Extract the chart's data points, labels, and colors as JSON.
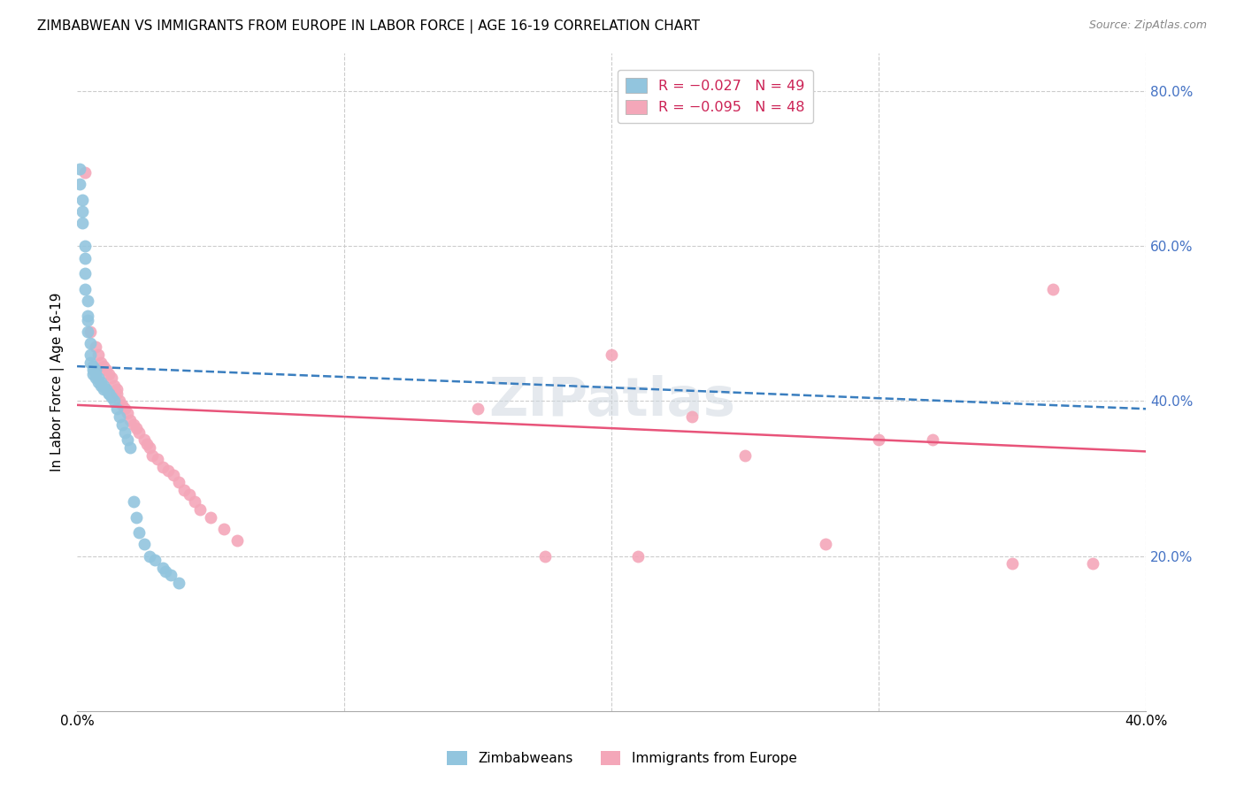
{
  "title": "ZIMBABWEAN VS IMMIGRANTS FROM EUROPE IN LABOR FORCE | AGE 16-19 CORRELATION CHART",
  "source": "Source: ZipAtlas.com",
  "ylabel": "In Labor Force | Age 16-19",
  "xlim": [
    0.0,
    0.4
  ],
  "ylim": [
    0.0,
    0.85
  ],
  "blue_color": "#92c5de",
  "pink_color": "#f4a7b9",
  "blue_line_color": "#3a7ebf",
  "pink_line_color": "#e8547a",
  "watermark": "ZIPatlas",
  "zim_x": [
    0.001,
    0.001,
    0.002,
    0.002,
    0.002,
    0.003,
    0.003,
    0.003,
    0.003,
    0.004,
    0.004,
    0.004,
    0.004,
    0.005,
    0.005,
    0.005,
    0.006,
    0.006,
    0.006,
    0.007,
    0.007,
    0.007,
    0.008,
    0.008,
    0.009,
    0.009,
    0.01,
    0.01,
    0.011,
    0.012,
    0.012,
    0.013,
    0.014,
    0.015,
    0.016,
    0.017,
    0.018,
    0.019,
    0.02,
    0.021,
    0.022,
    0.023,
    0.025,
    0.027,
    0.029,
    0.032,
    0.033,
    0.035,
    0.038
  ],
  "zim_y": [
    0.7,
    0.68,
    0.66,
    0.645,
    0.63,
    0.6,
    0.585,
    0.565,
    0.545,
    0.53,
    0.51,
    0.505,
    0.49,
    0.475,
    0.46,
    0.45,
    0.445,
    0.44,
    0.435,
    0.44,
    0.435,
    0.43,
    0.43,
    0.425,
    0.425,
    0.42,
    0.42,
    0.415,
    0.415,
    0.41,
    0.41,
    0.405,
    0.4,
    0.39,
    0.38,
    0.37,
    0.36,
    0.35,
    0.34,
    0.27,
    0.25,
    0.23,
    0.215,
    0.2,
    0.195,
    0.185,
    0.18,
    0.175,
    0.165
  ],
  "eur_x": [
    0.003,
    0.005,
    0.007,
    0.008,
    0.009,
    0.01,
    0.011,
    0.012,
    0.013,
    0.014,
    0.015,
    0.015,
    0.016,
    0.017,
    0.018,
    0.019,
    0.02,
    0.021,
    0.022,
    0.023,
    0.025,
    0.026,
    0.027,
    0.028,
    0.03,
    0.032,
    0.034,
    0.036,
    0.038,
    0.04,
    0.042,
    0.044,
    0.046,
    0.05,
    0.055,
    0.06,
    0.15,
    0.175,
    0.2,
    0.21,
    0.23,
    0.25,
    0.28,
    0.3,
    0.32,
    0.35,
    0.365,
    0.38
  ],
  "eur_y": [
    0.695,
    0.49,
    0.47,
    0.46,
    0.45,
    0.445,
    0.44,
    0.435,
    0.43,
    0.42,
    0.415,
    0.41,
    0.4,
    0.395,
    0.39,
    0.385,
    0.375,
    0.37,
    0.365,
    0.36,
    0.35,
    0.345,
    0.34,
    0.33,
    0.325,
    0.315,
    0.31,
    0.305,
    0.295,
    0.285,
    0.28,
    0.27,
    0.26,
    0.25,
    0.235,
    0.22,
    0.39,
    0.2,
    0.46,
    0.2,
    0.38,
    0.33,
    0.215,
    0.35,
    0.35,
    0.19,
    0.545,
    0.19
  ]
}
